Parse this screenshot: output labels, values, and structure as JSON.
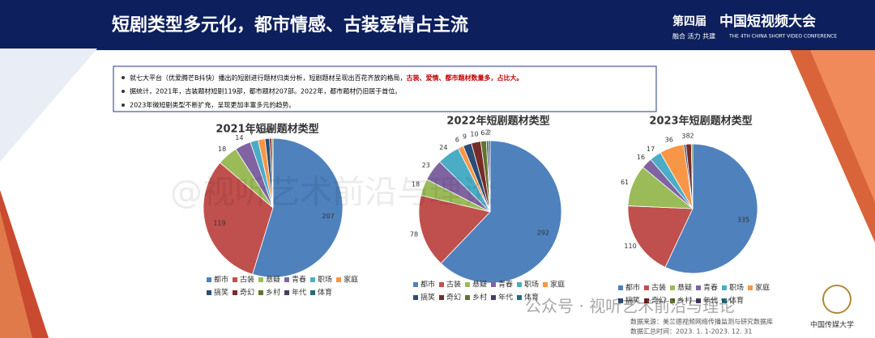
{
  "header": {
    "title": "短剧类型多元化，都市情感、古装爱情占主流",
    "event_prefix": "第四届",
    "event_name": "中国短视频大会",
    "event_motto": "融合 活力 共建",
    "event_en": "THE 4TH CHINA SHORT VIDEO CONFERENCE"
  },
  "bullets": [
    {
      "text": "就七大平台（优爱腾芒B抖快）播出的短剧进行题材归类分析，短剧题材呈现出百花齐放的格局，",
      "highlight": "古装、爱情、都市题材数量多，占比大。"
    },
    {
      "text": "据统计，2021年，古装题材短剧119部，都市题材207部。2022年，都市题材仍旧居于首位。"
    },
    {
      "text": "2023年微短剧类型不断扩充，呈现更加丰富多元的趋势。"
    }
  ],
  "chart_data": [
    {
      "type": "pie",
      "title": "2021年短剧题材类型",
      "categories": [
        "都市",
        "古装",
        "悬疑",
        "青春",
        "职场",
        "家庭",
        "搞笑",
        "奇幻",
        "乡村",
        "年代",
        "体育"
      ],
      "values": [
        207,
        119,
        18,
        14,
        7,
        6,
        4,
        2,
        1,
        null,
        null
      ],
      "colors": [
        "#4f81bd",
        "#c0504d",
        "#9bbb59",
        "#8064a2",
        "#4bacc6",
        "#f79646",
        "#2c4d75",
        "#772c2a",
        "#5f7530",
        "#4d3b62",
        "#276a7c"
      ]
    },
    {
      "type": "pie",
      "title": "2022年短剧题材类型",
      "categories": [
        "都市",
        "古装",
        "悬疑",
        "青春",
        "职场",
        "家庭",
        "搞笑",
        "奇幻",
        "乡村",
        "年代",
        "体育"
      ],
      "values": [
        292,
        78,
        18,
        23,
        24,
        6,
        9,
        10,
        6,
        2,
        2
      ],
      "colors": [
        "#4f81bd",
        "#c0504d",
        "#9bbb59",
        "#8064a2",
        "#4bacc6",
        "#f79646",
        "#2c4d75",
        "#772c2a",
        "#5f7530",
        "#4d3b62",
        "#276a7c"
      ]
    },
    {
      "type": "pie",
      "title": "2023年短剧题材类型",
      "categories": [
        "都市",
        "古装",
        "悬疑",
        "青春",
        "职场",
        "家庭",
        "搞笑",
        "奇幻",
        "乡村",
        "年代",
        "体育"
      ],
      "values": [
        335,
        110,
        61,
        16,
        17,
        36,
        3,
        8,
        2,
        null,
        null
      ],
      "colors": [
        "#4f81bd",
        "#c0504d",
        "#9bbb59",
        "#8064a2",
        "#4bacc6",
        "#f79646",
        "#2c4d75",
        "#772c2a",
        "#5f7530",
        "#4d3b62",
        "#276a7c"
      ]
    }
  ],
  "footer": {
    "source": "数据来源：美兰德视频网络传播监测与研究数据库",
    "period": "数据汇总时间：2023. 1. 1-2023. 12. 31",
    "university": "中国传媒大学"
  },
  "watermarks": [
    "@视听艺术前沿与理论",
    "公众号 · 视听艺术前沿与理论"
  ]
}
